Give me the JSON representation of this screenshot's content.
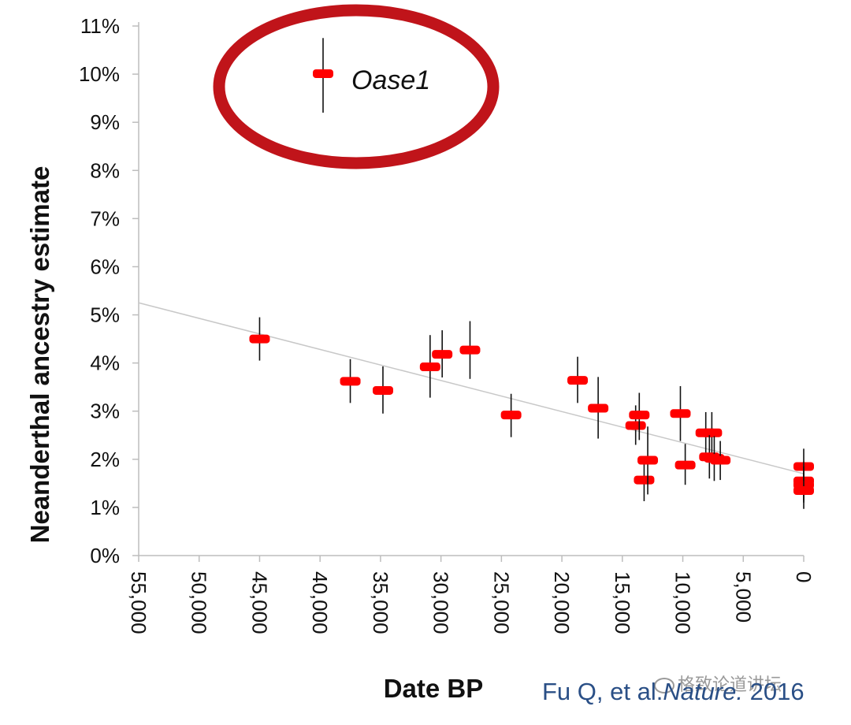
{
  "chart_data": {
    "type": "scatter",
    "title": "",
    "xlabel": "Date BP",
    "ylabel": "Neanderthal ancestry estimate",
    "xlim": [
      55000,
      0
    ],
    "ylim": [
      0,
      11
    ],
    "x_reversed": true,
    "x_ticks": [
      55000,
      50000,
      45000,
      40000,
      35000,
      30000,
      25000,
      20000,
      15000,
      10000,
      5000,
      0
    ],
    "x_tick_labels": [
      "55,000",
      "50,000",
      "45,000",
      "40,000",
      "35,000",
      "30,000",
      "25,000",
      "20,000",
      "15,000",
      "10,000",
      "5,000",
      "0"
    ],
    "y_ticks": [
      0,
      1,
      2,
      3,
      4,
      5,
      6,
      7,
      8,
      9,
      10,
      11
    ],
    "y_tick_labels": [
      "0%",
      "1%",
      "2%",
      "3%",
      "4%",
      "5%",
      "6%",
      "7%",
      "8%",
      "9%",
      "10%",
      "11%"
    ],
    "grid": false,
    "marker_color": "#ff0000",
    "errorbar_color": "#111111",
    "trendline_color": "#c8c8c8",
    "trendline": {
      "x": [
        55000,
        0
      ],
      "y": [
        5.25,
        1.7
      ]
    },
    "series": [
      {
        "points": [
          {
            "x": 45000,
            "y": 4.5,
            "ylow": 4.05,
            "yhigh": 4.95
          },
          {
            "x": 37500,
            "y": 3.62,
            "ylow": 3.17,
            "yhigh": 4.08
          },
          {
            "x": 34800,
            "y": 3.43,
            "ylow": 2.95,
            "yhigh": 3.93
          },
          {
            "x": 30900,
            "y": 3.92,
            "ylow": 3.28,
            "yhigh": 4.58
          },
          {
            "x": 29900,
            "y": 4.18,
            "ylow": 3.7,
            "yhigh": 4.68
          },
          {
            "x": 27600,
            "y": 4.27,
            "ylow": 3.67,
            "yhigh": 4.87
          },
          {
            "x": 24200,
            "y": 2.92,
            "ylow": 2.46,
            "yhigh": 3.36
          },
          {
            "x": 18700,
            "y": 3.64,
            "ylow": 3.17,
            "yhigh": 4.13
          },
          {
            "x": 17000,
            "y": 3.06,
            "ylow": 2.43,
            "yhigh": 3.71
          },
          {
            "x": 13900,
            "y": 2.7,
            "ylow": 2.3,
            "yhigh": 3.12
          },
          {
            "x": 13600,
            "y": 2.92,
            "ylow": 2.4,
            "yhigh": 3.38
          },
          {
            "x": 13200,
            "y": 1.57,
            "ylow": 1.13,
            "yhigh": 2.0
          },
          {
            "x": 12900,
            "y": 1.98,
            "ylow": 1.27,
            "yhigh": 2.68
          },
          {
            "x": 10200,
            "y": 2.95,
            "ylow": 2.38,
            "yhigh": 3.52
          },
          {
            "x": 9800,
            "y": 1.88,
            "ylow": 1.47,
            "yhigh": 2.32
          },
          {
            "x": 8100,
            "y": 2.55,
            "ylow": 2.1,
            "yhigh": 2.98
          },
          {
            "x": 7600,
            "y": 2.55,
            "ylow": 2.05,
            "yhigh": 2.98
          },
          {
            "x": 7800,
            "y": 2.05,
            "ylow": 1.6,
            "yhigh": 2.5
          },
          {
            "x": 7400,
            "y": 2.02,
            "ylow": 1.55,
            "yhigh": 2.48
          },
          {
            "x": 6900,
            "y": 1.98,
            "ylow": 1.57,
            "yhigh": 2.38
          },
          {
            "x": 0,
            "y": 1.85,
            "ylow": 1.45,
            "yhigh": 2.22
          },
          {
            "x": 0,
            "y": 1.55,
            "ylow": 1.15,
            "yhigh": 1.95
          },
          {
            "x": 0,
            "y": 1.47,
            "ylow": 1.1,
            "yhigh": 1.85
          },
          {
            "x": 0,
            "y": 1.35,
            "ylow": 0.97,
            "yhigh": 1.72
          }
        ]
      }
    ],
    "annotations": [
      {
        "text": "Oase1",
        "italic": true,
        "circled": true,
        "circle_color": "#c0141a",
        "marker_y_range": [
          9.2,
          10.75
        ]
      }
    ]
  },
  "citation": {
    "prefix": "Fu Q, et al.",
    "journal": "Nature.",
    "year": "2016"
  },
  "watermark": "格致论道讲坛"
}
